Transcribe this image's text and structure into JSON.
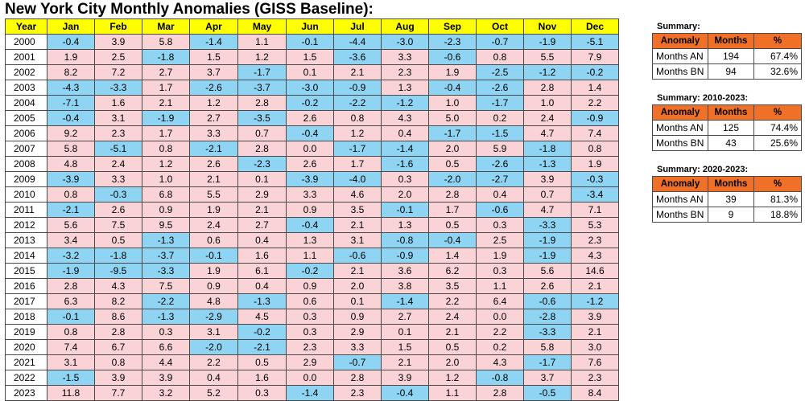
{
  "title": "New York City Monthly Anomalies (GISS Baseline):",
  "table": {
    "headers": [
      "Year",
      "Jan",
      "Feb",
      "Mar",
      "Apr",
      "May",
      "Jun",
      "Jul",
      "Aug",
      "Sep",
      "Oct",
      "Nov",
      "Dec"
    ],
    "rows": [
      [
        "2000",
        "-0.4",
        "3.9",
        "5.8",
        "-1.4",
        "1.1",
        "-0.1",
        "-4.4",
        "-3.0",
        "-2.3",
        "-0.7",
        "-1.9",
        "-5.1"
      ],
      [
        "2001",
        "1.9",
        "2.5",
        "-1.8",
        "1.5",
        "1.2",
        "1.5",
        "-3.6",
        "3.3",
        "-0.6",
        "0.8",
        "5.5",
        "7.9"
      ],
      [
        "2002",
        "8.2",
        "7.2",
        "2.7",
        "3.7",
        "-1.7",
        "0.1",
        "2.1",
        "2.3",
        "1.9",
        "-2.5",
        "-1.2",
        "-0.2"
      ],
      [
        "2003",
        "-4.3",
        "-3.3",
        "1.7",
        "-2.6",
        "-3.7",
        "-3.0",
        "-0.9",
        "1.3",
        "-0.4",
        "-2.6",
        "2.8",
        "1.4"
      ],
      [
        "2004",
        "-7.1",
        "1.6",
        "2.1",
        "1.2",
        "2.8",
        "-0.2",
        "-2.2",
        "-1.2",
        "1.0",
        "-1.7",
        "1.0",
        "2.2"
      ],
      [
        "2005",
        "-0.4",
        "3.1",
        "-1.9",
        "2.7",
        "-3.5",
        "2.6",
        "0.8",
        "4.3",
        "5.0",
        "0.2",
        "2.4",
        "-0.9"
      ],
      [
        "2006",
        "9.2",
        "2.3",
        "1.7",
        "3.3",
        "0.7",
        "-0.4",
        "1.2",
        "0.4",
        "-1.7",
        "-1.5",
        "4.7",
        "7.4"
      ],
      [
        "2007",
        "5.8",
        "-5.1",
        "0.8",
        "-2.1",
        "2.8",
        "0.0",
        "-1.7",
        "-1.4",
        "2.0",
        "5.9",
        "-1.8",
        "0.8"
      ],
      [
        "2008",
        "4.8",
        "2.4",
        "1.2",
        "2.6",
        "-2.3",
        "2.6",
        "1.7",
        "-1.6",
        "0.5",
        "-2.6",
        "-1.3",
        "1.9"
      ],
      [
        "2009",
        "-3.9",
        "3.3",
        "1.0",
        "2.1",
        "0.1",
        "-3.9",
        "-4.0",
        "0.3",
        "-2.0",
        "-2.7",
        "3.9",
        "-0.3"
      ],
      [
        "2010",
        "0.8",
        "-0.3",
        "6.8",
        "5.5",
        "2.9",
        "3.3",
        "4.6",
        "2.0",
        "2.8",
        "0.4",
        "0.7",
        "-3.4"
      ],
      [
        "2011",
        "-2.1",
        "2.6",
        "0.9",
        "1.9",
        "2.1",
        "0.9",
        "3.5",
        "-0.1",
        "1.7",
        "-0.6",
        "4.7",
        "7.1"
      ],
      [
        "2012",
        "5.6",
        "7.5",
        "9.5",
        "2.4",
        "2.7",
        "-0.4",
        "2.1",
        "1.3",
        "0.5",
        "0.3",
        "-3.3",
        "5.3"
      ],
      [
        "2013",
        "3.4",
        "0.5",
        "-1.3",
        "0.6",
        "0.4",
        "1.3",
        "3.1",
        "-0.8",
        "-0.4",
        "2.5",
        "-1.9",
        "2.3"
      ],
      [
        "2014",
        "-3.2",
        "-1.8",
        "-3.7",
        "-0.1",
        "1.6",
        "1.1",
        "-0.6",
        "-0.9",
        "1.4",
        "1.9",
        "-1.9",
        "4.3"
      ],
      [
        "2015",
        "-1.9",
        "-9.5",
        "-3.3",
        "1.9",
        "6.1",
        "-0.2",
        "2.1",
        "3.6",
        "6.2",
        "0.3",
        "5.6",
        "14.6"
      ],
      [
        "2016",
        "2.8",
        "4.3",
        "7.5",
        "0.9",
        "0.4",
        "0.9",
        "2.0",
        "3.8",
        "3.5",
        "1.1",
        "2.6",
        "2.1"
      ],
      [
        "2017",
        "6.3",
        "8.2",
        "-2.2",
        "4.8",
        "-1.3",
        "0.6",
        "0.1",
        "-1.4",
        "2.2",
        "6.4",
        "-0.6",
        "-1.2"
      ],
      [
        "2018",
        "-0.1",
        "8.6",
        "-1.3",
        "-2.9",
        "4.5",
        "0.3",
        "0.9",
        "2.7",
        "2.4",
        "0.0",
        "-2.8",
        "3.9"
      ],
      [
        "2019",
        "0.8",
        "2.8",
        "0.3",
        "3.1",
        "-0.2",
        "0.3",
        "2.9",
        "0.1",
        "2.1",
        "2.2",
        "-3.3",
        "2.1"
      ],
      [
        "2020",
        "7.4",
        "6.7",
        "6.6",
        "-2.0",
        "-2.1",
        "2.3",
        "3.3",
        "1.5",
        "0.5",
        "0.2",
        "5.8",
        "3.0"
      ],
      [
        "2021",
        "3.1",
        "0.8",
        "4.4",
        "2.2",
        "0.5",
        "2.9",
        "-0.7",
        "2.1",
        "2.0",
        "4.3",
        "-1.7",
        "7.6"
      ],
      [
        "2022",
        "-1.5",
        "3.9",
        "3.9",
        "0.4",
        "1.6",
        "0.0",
        "2.8",
        "3.9",
        "1.2",
        "-0.8",
        "3.7",
        "2.3"
      ],
      [
        "2023",
        "11.8",
        "7.7",
        "3.2",
        "5.2",
        "0.3",
        "-1.4",
        "2.3",
        "-0.4",
        "1.1",
        "2.8",
        "-0.5",
        "8.4"
      ]
    ]
  },
  "summaries": [
    {
      "title": "Summary:",
      "headers": [
        "Anomaly",
        "Months",
        "%"
      ],
      "rows": [
        [
          "Months AN",
          "194",
          "67.4%"
        ],
        [
          "Months BN",
          "94",
          "32.6%"
        ]
      ]
    },
    {
      "title": "Summary: 2010-2023:",
      "headers": [
        "Anomaly",
        "Months",
        "%"
      ],
      "rows": [
        [
          "Months AN",
          "125",
          "74.4%"
        ],
        [
          "Months BN",
          "43",
          "25.6%"
        ]
      ]
    },
    {
      "title": "Summary: 2020-2023:",
      "headers": [
        "Anomaly",
        "Months",
        "%"
      ],
      "rows": [
        [
          "Months AN",
          "39",
          "81.3%"
        ],
        [
          "Months BN",
          "9",
          "18.8%"
        ]
      ]
    }
  ],
  "colors": {
    "header_bg": "#ffff00",
    "positive_bg": "#f9d3d6",
    "negative_bg": "#8fd4f3",
    "summary_header_bg": "#f07028"
  }
}
